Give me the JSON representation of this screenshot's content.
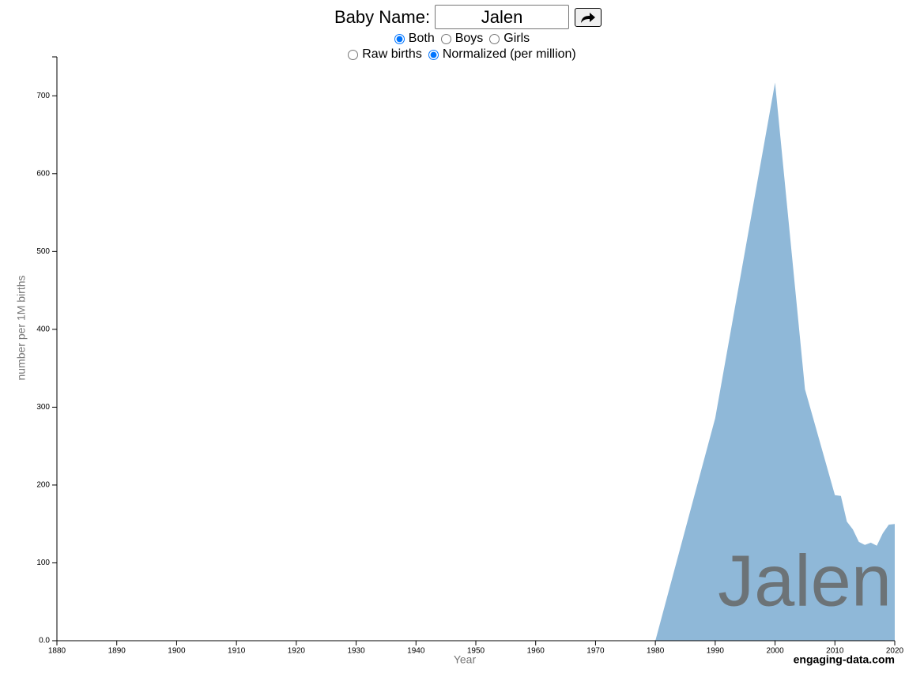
{
  "controls": {
    "name_label": "Baby Name:",
    "name_value": "Jalen",
    "sex_options": [
      {
        "label": "Both",
        "checked": true
      },
      {
        "label": "Boys",
        "checked": false
      },
      {
        "label": "Girls",
        "checked": false
      }
    ],
    "mode_options": [
      {
        "label": "Raw births",
        "checked": false
      },
      {
        "label": "Normalized (per million)",
        "checked": true
      }
    ]
  },
  "footer": "engaging-data.com",
  "chart_data": {
    "type": "area",
    "x_label": "Year",
    "y_label": "number per 1M births",
    "color": "#8fb8d8",
    "x": [
      1980,
      1990,
      2000,
      2005,
      2010,
      2011,
      2012,
      2013,
      2014,
      2015,
      2016,
      2017,
      2018,
      2019,
      2020
    ],
    "values": [
      0,
      286,
      717,
      323,
      187,
      186,
      153,
      143,
      127,
      123,
      126,
      122,
      138,
      149,
      150
    ],
    "xlim": [
      1880,
      2020
    ],
    "xticks": [
      1880,
      1890,
      1900,
      1910,
      1920,
      1930,
      1940,
      1950,
      1960,
      1970,
      1980,
      1990,
      2000,
      2010,
      2020
    ],
    "ylim": [
      0,
      750
    ],
    "yticks": [
      {
        "value": 0,
        "label": "0.0"
      },
      100,
      200,
      300,
      400,
      500,
      600,
      700
    ]
  }
}
